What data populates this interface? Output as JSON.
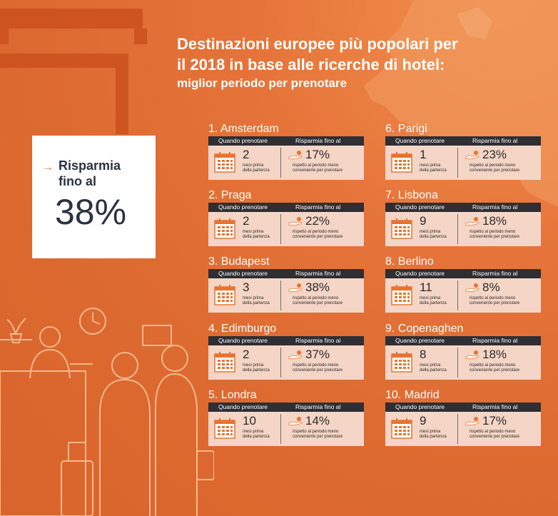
{
  "title": {
    "line1": "Destinazioni europee più popolari per",
    "line2": "il 2018 in base alle ricerche di hotel:",
    "subtitle": "miglior periodo per prenotare"
  },
  "highlight": {
    "label_line1": "Risparmia",
    "label_line2": "fino al",
    "percent": "38%"
  },
  "labels": {
    "when_header": "Quando prenotare",
    "save_header": "Risparmia fino al",
    "months_line1": "mesi prima",
    "months_line2": "della partenza",
    "save_line1": "rispetto al periodo meno",
    "save_line2": "conveniente per prenotare"
  },
  "colors": {
    "accent": "#e6743a",
    "dark": "#2e2e33",
    "card": "#f4d5c6",
    "calendar": "#e8742f"
  },
  "destinations": [
    {
      "name": "1. Amsterdam",
      "months": "2",
      "percent": "17%"
    },
    {
      "name": "2. Praga",
      "months": "2",
      "percent": "22%"
    },
    {
      "name": "3. Budapest",
      "months": "3",
      "percent": "38%"
    },
    {
      "name": "4. Edimburgo",
      "months": "2",
      "percent": "37%"
    },
    {
      "name": "5. Londra",
      "months": "10",
      "percent": "14%"
    },
    {
      "name": "6. Parigi",
      "months": "1",
      "percent": "23%"
    },
    {
      "name": "7. Lisbona",
      "months": "9",
      "percent": "18%"
    },
    {
      "name": "8. Berlino",
      "months": "11",
      "percent": "8%"
    },
    {
      "name": "9. Copenaghen",
      "months": "8",
      "percent": "18%"
    },
    {
      "name": "10. Madrid",
      "months": "9",
      "percent": "17%"
    }
  ]
}
